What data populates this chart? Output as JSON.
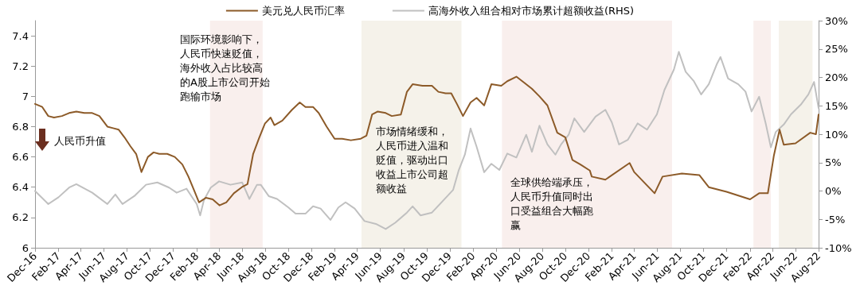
{
  "chart_data": {
    "type": "line",
    "x": [
      "2016-12-01",
      "2016-12-20",
      "2017-01-05",
      "2017-01-20",
      "2017-02-10",
      "2017-03-01",
      "2017-03-20",
      "2017-04-10",
      "2017-05-01",
      "2017-05-20",
      "2017-06-10",
      "2017-06-25",
      "2017-07-10",
      "2017-07-25",
      "2017-08-10",
      "2017-08-25",
      "2017-09-08",
      "2017-09-25",
      "2017-10-10",
      "2017-10-25",
      "2017-11-15",
      "2017-12-05",
      "2017-12-25",
      "2018-01-10",
      "2018-01-25",
      "2018-02-07",
      "2018-02-25",
      "2018-03-15",
      "2018-04-02",
      "2018-04-20",
      "2018-05-10",
      "2018-05-31",
      "2018-06-15",
      "2018-06-30",
      "2018-07-15",
      "2018-07-31",
      "2018-08-15",
      "2018-08-25",
      "2018-09-15",
      "2018-10-10",
      "2018-10-31",
      "2018-11-15",
      "2018-12-05",
      "2018-12-20",
      "2019-01-10",
      "2019-01-31",
      "2019-02-20",
      "2019-03-15",
      "2019-04-10",
      "2019-04-25",
      "2019-05-10",
      "2019-05-25",
      "2019-06-15",
      "2019-07-01",
      "2019-07-25",
      "2019-08-10",
      "2019-08-25",
      "2019-09-20",
      "2019-10-15",
      "2019-11-01",
      "2019-11-20",
      "2019-12-05",
      "2019-12-20",
      "2020-01-05",
      "2020-01-25",
      "2020-02-10",
      "2020-03-01",
      "2020-03-20",
      "2020-04-15",
      "2020-05-01",
      "2020-05-25",
      "2020-06-15",
      "2020-07-05",
      "2020-07-25",
      "2020-08-15",
      "2020-09-10",
      "2020-10-01",
      "2020-10-20",
      "2020-11-10",
      "2020-12-05",
      "2020-12-10",
      "2021-01-15",
      "2021-03-20",
      "2021-04-01",
      "2021-05-25",
      "2021-06-15",
      "2021-08-05",
      "2021-09-20",
      "2021-10-15",
      "2021-12-01",
      "2022-02-01",
      "2022-02-25",
      "2022-03-20",
      "2022-04-05",
      "2022-04-20",
      "2022-05-01",
      "2022-06-01",
      "2022-07-10",
      "2022-07-25",
      "2022-08-01"
    ],
    "xlim": [
      "2016-12",
      "2022-08"
    ],
    "xticks": [
      {
        "value": "2016-12",
        "label": "Dec-16"
      },
      {
        "value": "2017-02",
        "label": "Feb-17"
      },
      {
        "value": "2017-04",
        "label": "Apr-17"
      },
      {
        "value": "2017-06",
        "label": "Jun-17"
      },
      {
        "value": "2017-08",
        "label": "Aug-17"
      },
      {
        "value": "2017-10",
        "label": "Oct-17"
      },
      {
        "value": "2017-12",
        "label": "Dec-17"
      },
      {
        "value": "2018-02",
        "label": "Feb-18"
      },
      {
        "value": "2018-04",
        "label": "Apr-18"
      },
      {
        "value": "2018-06",
        "label": "Jun-18"
      },
      {
        "value": "2018-08",
        "label": "Aug-18"
      },
      {
        "value": "2018-10",
        "label": "Oct-18"
      },
      {
        "value": "2018-12",
        "label": "Dec-18"
      },
      {
        "value": "2019-02",
        "label": "Feb-19"
      },
      {
        "value": "2019-04",
        "label": "Apr-19"
      },
      {
        "value": "2019-06",
        "label": "Jun-19"
      },
      {
        "value": "2019-08",
        "label": "Aug-19"
      },
      {
        "value": "2019-10",
        "label": "Oct-19"
      },
      {
        "value": "2019-12",
        "label": "Dec-19"
      },
      {
        "value": "2020-02",
        "label": "Feb-20"
      },
      {
        "value": "2020-04",
        "label": "Apr-20"
      },
      {
        "value": "2020-06",
        "label": "Jun-20"
      },
      {
        "value": "2020-08",
        "label": "Aug-20"
      },
      {
        "value": "2020-10",
        "label": "Oct-20"
      },
      {
        "value": "2020-12",
        "label": "Dec-20"
      },
      {
        "value": "2021-02",
        "label": "Feb-21"
      },
      {
        "value": "2021-04",
        "label": "Apr-21"
      },
      {
        "value": "2021-06",
        "label": "Jun-21"
      },
      {
        "value": "2021-08",
        "label": "Aug-21"
      },
      {
        "value": "2021-10",
        "label": "Oct-21"
      },
      {
        "value": "2021-12",
        "label": "Dec-21"
      },
      {
        "value": "2022-02",
        "label": "Feb-22"
      },
      {
        "value": "2022-04",
        "label": "Apr-22"
      },
      {
        "value": "2022-06",
        "label": "Jun-22"
      },
      {
        "value": "2022-08",
        "label": "Aug-22"
      }
    ],
    "ylim": [
      6,
      7.5
    ],
    "yticks": [
      6,
      6.2,
      6.4,
      6.6,
      6.8,
      7,
      7.2,
      7.4
    ],
    "y2lim": [
      -10,
      30
    ],
    "y2ticks": [
      {
        "value": -10,
        "label": "-10%"
      },
      {
        "value": -5,
        "label": "-5%"
      },
      {
        "value": 0,
        "label": "0%"
      },
      {
        "value": 5,
        "label": "5%"
      },
      {
        "value": 10,
        "label": "10%"
      },
      {
        "value": 15,
        "label": "15%"
      },
      {
        "value": 20,
        "label": "20%"
      },
      {
        "value": 25,
        "label": "25%"
      },
      {
        "value": 30,
        "label": "30%"
      }
    ],
    "series": [
      {
        "name": "美元兑人民币汇率",
        "color": "#8c5a28",
        "values": [
          6.95,
          6.93,
          6.87,
          6.86,
          6.87,
          6.89,
          6.9,
          6.89,
          6.89,
          6.87,
          6.8,
          6.79,
          6.78,
          6.73,
          6.67,
          6.62,
          6.5,
          6.6,
          6.63,
          6.62,
          6.62,
          6.6,
          6.55,
          6.47,
          6.38,
          6.3,
          6.33,
          6.32,
          6.28,
          6.3,
          6.36,
          6.4,
          6.42,
          6.62,
          6.72,
          6.82,
          6.86,
          6.81,
          6.84,
          6.91,
          6.96,
          6.93,
          6.93,
          6.89,
          6.8,
          6.72,
          6.72,
          6.71,
          6.72,
          6.74,
          6.88,
          6.9,
          6.89,
          6.87,
          6.88,
          7.03,
          7.08,
          7.07,
          7.07,
          7.03,
          7.02,
          7.02,
          6.95,
          6.87,
          6.96,
          6.99,
          6.94,
          7.08,
          7.07,
          7.1,
          7.13,
          7.09,
          7.05,
          7,
          6.94,
          6.76,
          6.73,
          6.58,
          6.55,
          6.51,
          6.47,
          6.45,
          6.56,
          6.5,
          6.36,
          6.47,
          6.49,
          6.48,
          6.4,
          6.37,
          6.32,
          6.36,
          6.36,
          6.61,
          6.78,
          6.68,
          6.69,
          6.76,
          6.75,
          6.88
        ]
      },
      {
        "name": "高海外收入组合相对市场累计超额收益(RHS)",
        "color": "#c0c0c0",
        "axis": "y2",
        "x": [
          "2016-12-01",
          "2017-01-05",
          "2017-02-01",
          "2017-03-01",
          "2017-03-20",
          "2017-05-01",
          "2017-06-10",
          "2017-07-01",
          "2017-07-20",
          "2017-08-20",
          "2017-09-20",
          "2017-10-20",
          "2017-11-20",
          "2017-12-10",
          "2018-01-05",
          "2018-01-25",
          "2018-02-01",
          "2018-02-10",
          "2018-02-20",
          "2018-03-10",
          "2018-04-01",
          "2018-05-01",
          "2018-06-01",
          "2018-06-20",
          "2018-07-10",
          "2018-07-20",
          "2018-08-10",
          "2018-09-01",
          "2018-10-01",
          "2018-10-20",
          "2018-11-15",
          "2018-12-05",
          "2018-12-25",
          "2019-01-20",
          "2019-02-10",
          "2019-03-01",
          "2019-03-25",
          "2019-04-20",
          "2019-05-20",
          "2019-06-15",
          "2019-07-10",
          "2019-08-10",
          "2019-08-25",
          "2019-09-15",
          "2019-10-15",
          "2019-11-15",
          "2019-12-10",
          "2019-12-25",
          "2020-01-10",
          "2020-01-25",
          "2020-02-10",
          "2020-03-01",
          "2020-03-20",
          "2020-04-10",
          "2020-05-01",
          "2020-05-25",
          "2020-06-20",
          "2020-07-05",
          "2020-07-25",
          "2020-08-15",
          "2020-09-05",
          "2020-09-20",
          "2020-10-10",
          "2020-10-25",
          "2020-11-20",
          "2020-12-20",
          "2021-01-15",
          "2021-02-01",
          "2021-02-20",
          "2021-03-15",
          "2021-04-10",
          "2021-05-05",
          "2021-05-31",
          "2021-06-20",
          "2021-07-15",
          "2021-07-28",
          "2021-08-15",
          "2021-09-05",
          "2021-09-25",
          "2021-10-15",
          "2021-11-05",
          "2021-11-15",
          "2021-12-05",
          "2022-01-01",
          "2022-01-20",
          "2022-02-05",
          "2022-02-25",
          "2022-03-15",
          "2022-03-28",
          "2022-04-10",
          "2022-05-01",
          "2022-05-20",
          "2022-06-15",
          "2022-07-05",
          "2022-07-20",
          "2022-08-01"
        ],
        "values": [
          0,
          -2.3,
          -1.1,
          0.6,
          1.2,
          -0.3,
          -2.3,
          -0.6,
          -2.3,
          -0.9,
          1.1,
          1.5,
          0.6,
          -0.3,
          0.4,
          -1.6,
          -2.3,
          -4.3,
          -1.6,
          0.6,
          1.7,
          1.1,
          1.5,
          -1.4,
          1.1,
          1.1,
          -0.9,
          -1.4,
          -2.9,
          -4,
          -4,
          -2.7,
          -3.1,
          -5.1,
          -2.9,
          -2,
          -3.1,
          -5.3,
          -5.8,
          -6.7,
          -5.6,
          -3.8,
          -2.7,
          -4.3,
          -3.8,
          -1.6,
          0.2,
          3.7,
          6.4,
          11,
          7.8,
          3.3,
          4.8,
          3.7,
          6.6,
          5.9,
          9.9,
          6.9,
          11.5,
          8.2,
          6.4,
          8.2,
          9.9,
          12.8,
          10.4,
          13.1,
          14.3,
          12.1,
          8.2,
          9,
          11.9,
          10.8,
          13.5,
          17.8,
          21.4,
          24.5,
          21,
          19.4,
          17,
          18.8,
          22.3,
          23.6,
          19.8,
          18.8,
          17.5,
          14,
          16.6,
          11.7,
          7.7,
          10.4,
          11.7,
          13.5,
          15.2,
          17,
          19.2,
          14.6
        ]
      }
    ],
    "bands": [
      {
        "axis": "x",
        "from": "2018-03-08",
        "to": "2018-07-25",
        "color": "#f9efed"
      },
      {
        "axis": "x",
        "from": "2019-04-12",
        "to": "2020-01-01",
        "color": "#f5f2ea"
      },
      {
        "axis": "x",
        "from": "2020-04-17",
        "to": "2021-07-10",
        "color": "#f9efed"
      },
      {
        "axis": "x",
        "from": "2022-02-10",
        "to": "2022-03-28",
        "color": "#f9efed"
      },
      {
        "axis": "x",
        "from": "2022-04-18",
        "to": "2022-07-16",
        "color": "#f5f2ea"
      }
    ],
    "annotations": [
      "国际环境影响下，人民币快速贬值，海外收入占比较高的A股上市公司开始跑输市场",
      "市场情绪缓和，人民币进入温和贬值，驱动出口收益上市公司超额收益",
      "全球供给端承压，人民币升值同时出口受益组合大幅跑赢",
      "人民币升值"
    ],
    "legend": "top",
    "grid": false,
    "marker": "none",
    "line_style": "solid"
  }
}
